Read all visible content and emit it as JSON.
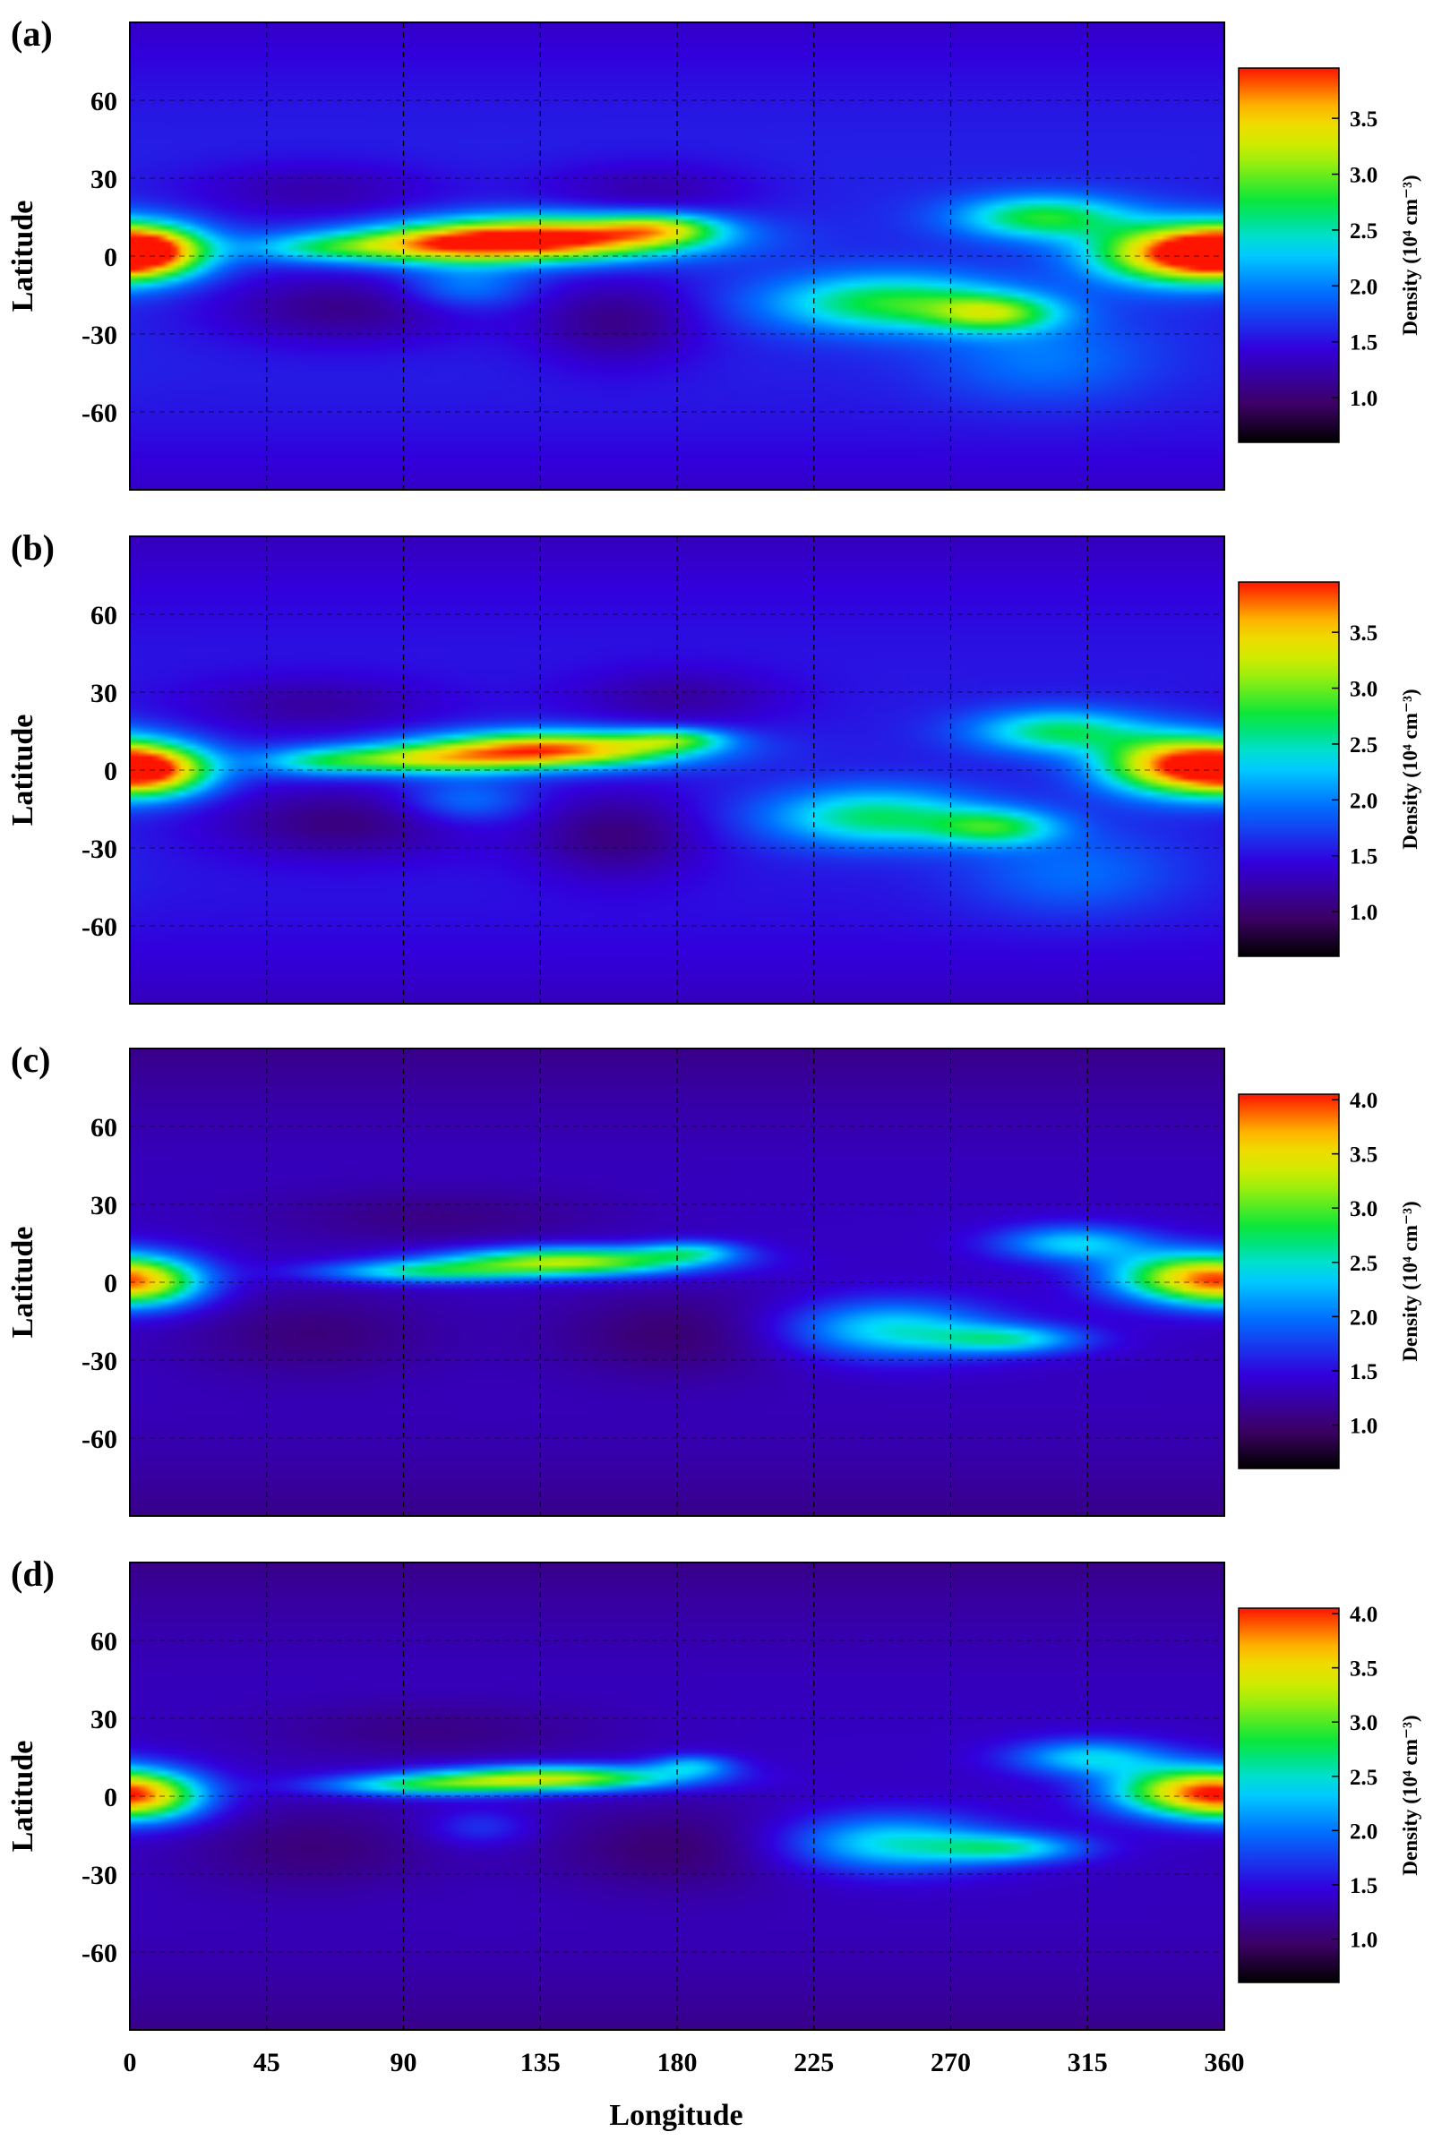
{
  "figure": {
    "xlabel": "Longitude",
    "ylabel": "Latitude",
    "colorbar_label": "Density (10⁴ cm⁻³)"
  },
  "chart_data": [
    {
      "type": "heatmap",
      "panel_label": "(a)",
      "xlim": [
        0,
        360
      ],
      "ylim": [
        -90,
        90
      ],
      "x_ticks": [
        "0",
        "45",
        "90",
        "135",
        "180",
        "225",
        "270",
        "315",
        "360"
      ],
      "y_ticks": [
        "60",
        "30",
        "0",
        "-30",
        "-60"
      ],
      "grid": true,
      "colorbar": {
        "min": 0.6,
        "max": 3.95,
        "ticks": [
          "1.0",
          "1.5",
          "2.0",
          "2.5",
          "3.0",
          "3.5"
        ]
      },
      "features": {
        "background": 1.6,
        "band_blobs": [
          {
            "lon": 140,
            "lat": 7,
            "slon": 32,
            "slat": 6,
            "amp": 2.3
          },
          {
            "lon": 100,
            "lat": 4,
            "slon": 26,
            "slat": 5,
            "amp": 1.4
          },
          {
            "lon": 60,
            "lat": 3,
            "slon": 18,
            "slat": 4,
            "amp": 0.6
          },
          {
            "lon": 175,
            "lat": 11,
            "slon": 14,
            "slat": 4,
            "amp": 1.0
          },
          {
            "lon": 5,
            "lat": 2,
            "slon": 14,
            "slat": 7,
            "amp": 2.0
          },
          {
            "lon": 345,
            "lat": 1,
            "slon": 20,
            "slat": 8,
            "amp": 2.2
          },
          {
            "lon": 300,
            "lat": 15,
            "slon": 20,
            "slat": 6,
            "amp": 1.2
          },
          {
            "lon": 250,
            "lat": -18,
            "slon": 28,
            "slat": 8,
            "amp": 1.2
          },
          {
            "lon": 285,
            "lat": -22,
            "slon": 15,
            "slat": 5,
            "amp": 1.1
          },
          {
            "lon": 110,
            "lat": -12,
            "slon": 15,
            "slat": 6,
            "amp": 0.5
          },
          {
            "lon": 300,
            "lat": -40,
            "slon": 25,
            "slat": 12,
            "amp": 0.4
          }
        ],
        "lows": [
          {
            "lon": 70,
            "lat": -20,
            "slon": 30,
            "slat": 10,
            "amp": 0.5
          },
          {
            "lon": 160,
            "lat": -25,
            "slon": 20,
            "slat": 12,
            "amp": 0.5
          },
          {
            "lon": 170,
            "lat": 25,
            "slon": 25,
            "slat": 8,
            "amp": 0.35
          },
          {
            "lon": 60,
            "lat": 25,
            "slon": 30,
            "slat": 8,
            "amp": 0.35
          }
        ]
      }
    },
    {
      "type": "heatmap",
      "panel_label": "(b)",
      "xlim": [
        0,
        360
      ],
      "ylim": [
        -90,
        90
      ],
      "x_ticks": [
        "0",
        "45",
        "90",
        "135",
        "180",
        "225",
        "270",
        "315",
        "360"
      ],
      "y_ticks": [
        "60",
        "30",
        "0",
        "-30",
        "-60"
      ],
      "grid": true,
      "colorbar": {
        "min": 0.6,
        "max": 3.95,
        "ticks": [
          "1.0",
          "1.5",
          "2.0",
          "2.5",
          "3.0",
          "3.5"
        ]
      },
      "features": {
        "background": 1.55,
        "band_blobs": [
          {
            "lon": 140,
            "lat": 8,
            "slon": 30,
            "slat": 5,
            "amp": 2.2
          },
          {
            "lon": 95,
            "lat": 4,
            "slon": 25,
            "slat": 4,
            "amp": 1.3
          },
          {
            "lon": 60,
            "lat": 3,
            "slon": 15,
            "slat": 4,
            "amp": 0.6
          },
          {
            "lon": 180,
            "lat": 12,
            "slon": 12,
            "slat": 3,
            "amp": 0.9
          },
          {
            "lon": 8,
            "lat": 0,
            "slon": 14,
            "slat": 7,
            "amp": 1.9
          },
          {
            "lon": 345,
            "lat": 2,
            "slon": 18,
            "slat": 8,
            "amp": 2.2
          },
          {
            "lon": 305,
            "lat": 15,
            "slon": 20,
            "slat": 6,
            "amp": 1.1
          },
          {
            "lon": 245,
            "lat": -18,
            "slon": 25,
            "slat": 8,
            "amp": 1.1
          },
          {
            "lon": 285,
            "lat": -22,
            "slon": 15,
            "slat": 5,
            "amp": 1.0
          },
          {
            "lon": 110,
            "lat": -12,
            "slon": 15,
            "slat": 6,
            "amp": 0.5
          },
          {
            "lon": 310,
            "lat": -40,
            "slon": 25,
            "slat": 12,
            "amp": 0.4
          }
        ],
        "lows": [
          {
            "lon": 70,
            "lat": -20,
            "slon": 30,
            "slat": 10,
            "amp": 0.5
          },
          {
            "lon": 160,
            "lat": -25,
            "slon": 20,
            "slat": 12,
            "amp": 0.5
          },
          {
            "lon": 60,
            "lat": 25,
            "slon": 30,
            "slat": 8,
            "amp": 0.35
          },
          {
            "lon": 180,
            "lat": 28,
            "slon": 25,
            "slat": 8,
            "amp": 0.35
          }
        ]
      }
    },
    {
      "type": "heatmap",
      "panel_label": "(c)",
      "xlim": [
        0,
        360
      ],
      "ylim": [
        -90,
        90
      ],
      "x_ticks": [
        "0",
        "45",
        "90",
        "135",
        "180",
        "225",
        "270",
        "315",
        "360"
      ],
      "y_ticks": [
        "60",
        "30",
        "0",
        "-30",
        "-60"
      ],
      "grid": true,
      "colorbar": {
        "min": 0.6,
        "max": 4.05,
        "ticks": [
          "1.0",
          "1.5",
          "2.0",
          "2.5",
          "3.0",
          "3.5",
          "4.0"
        ]
      },
      "features": {
        "background": 1.35,
        "band_blobs": [
          {
            "lon": 145,
            "lat": 8,
            "slon": 30,
            "slat": 4,
            "amp": 1.9
          },
          {
            "lon": 95,
            "lat": 4,
            "slon": 25,
            "slat": 3,
            "amp": 1.1
          },
          {
            "lon": 185,
            "lat": 12,
            "slon": 12,
            "slat": 3,
            "amp": 0.8
          },
          {
            "lon": 5,
            "lat": 0,
            "slon": 15,
            "slat": 7,
            "amp": 1.6
          },
          {
            "lon": 345,
            "lat": 2,
            "slon": 18,
            "slat": 7,
            "amp": 1.6
          },
          {
            "lon": 310,
            "lat": 15,
            "slon": 18,
            "slat": 5,
            "amp": 1.0
          },
          {
            "lon": 250,
            "lat": -18,
            "slon": 25,
            "slat": 8,
            "amp": 1.1
          },
          {
            "lon": 290,
            "lat": -22,
            "slon": 18,
            "slat": 4,
            "amp": 1.0
          }
        ],
        "lows": [
          {
            "lon": 180,
            "lat": -20,
            "slon": 30,
            "slat": 12,
            "amp": 0.35
          },
          {
            "lon": 60,
            "lat": -20,
            "slon": 30,
            "slat": 12,
            "amp": 0.3
          },
          {
            "lon": 100,
            "lat": 25,
            "slon": 40,
            "slat": 8,
            "amp": 0.25
          }
        ]
      }
    },
    {
      "type": "heatmap",
      "panel_label": "(d)",
      "xlim": [
        0,
        360
      ],
      "ylim": [
        -90,
        90
      ],
      "x_ticks": [
        "0",
        "45",
        "90",
        "135",
        "180",
        "225",
        "270",
        "315",
        "360"
      ],
      "y_ticks": [
        "60",
        "30",
        "0",
        "-30",
        "-60"
      ],
      "grid": true,
      "colorbar": {
        "min": 0.6,
        "max": 4.05,
        "ticks": [
          "1.0",
          "1.5",
          "2.0",
          "2.5",
          "3.0",
          "3.5",
          "4.0"
        ]
      },
      "features": {
        "background": 1.35,
        "band_blobs": [
          {
            "lon": 140,
            "lat": 7,
            "slon": 30,
            "slat": 3.5,
            "amp": 1.9
          },
          {
            "lon": 95,
            "lat": 4,
            "slon": 25,
            "slat": 3,
            "amp": 1.1
          },
          {
            "lon": 185,
            "lat": 12,
            "slon": 10,
            "slat": 3,
            "amp": 0.8
          },
          {
            "lon": 5,
            "lat": 0,
            "slon": 15,
            "slat": 7,
            "amp": 1.7
          },
          {
            "lon": 345,
            "lat": 2,
            "slon": 18,
            "slat": 7,
            "amp": 1.7
          },
          {
            "lon": 315,
            "lat": 15,
            "slon": 18,
            "slat": 5,
            "amp": 1.0
          },
          {
            "lon": 250,
            "lat": -18,
            "slon": 25,
            "slat": 8,
            "amp": 1.1
          },
          {
            "lon": 290,
            "lat": -20,
            "slon": 18,
            "slat": 4,
            "amp": 1.0
          },
          {
            "lon": 115,
            "lat": -12,
            "slon": 12,
            "slat": 5,
            "amp": 0.4
          }
        ],
        "lows": [
          {
            "lon": 180,
            "lat": -20,
            "slon": 30,
            "slat": 12,
            "amp": 0.35
          },
          {
            "lon": 60,
            "lat": -20,
            "slon": 30,
            "slat": 12,
            "amp": 0.3
          },
          {
            "lon": 100,
            "lat": 25,
            "slon": 40,
            "slat": 8,
            "amp": 0.25
          }
        ]
      }
    }
  ]
}
